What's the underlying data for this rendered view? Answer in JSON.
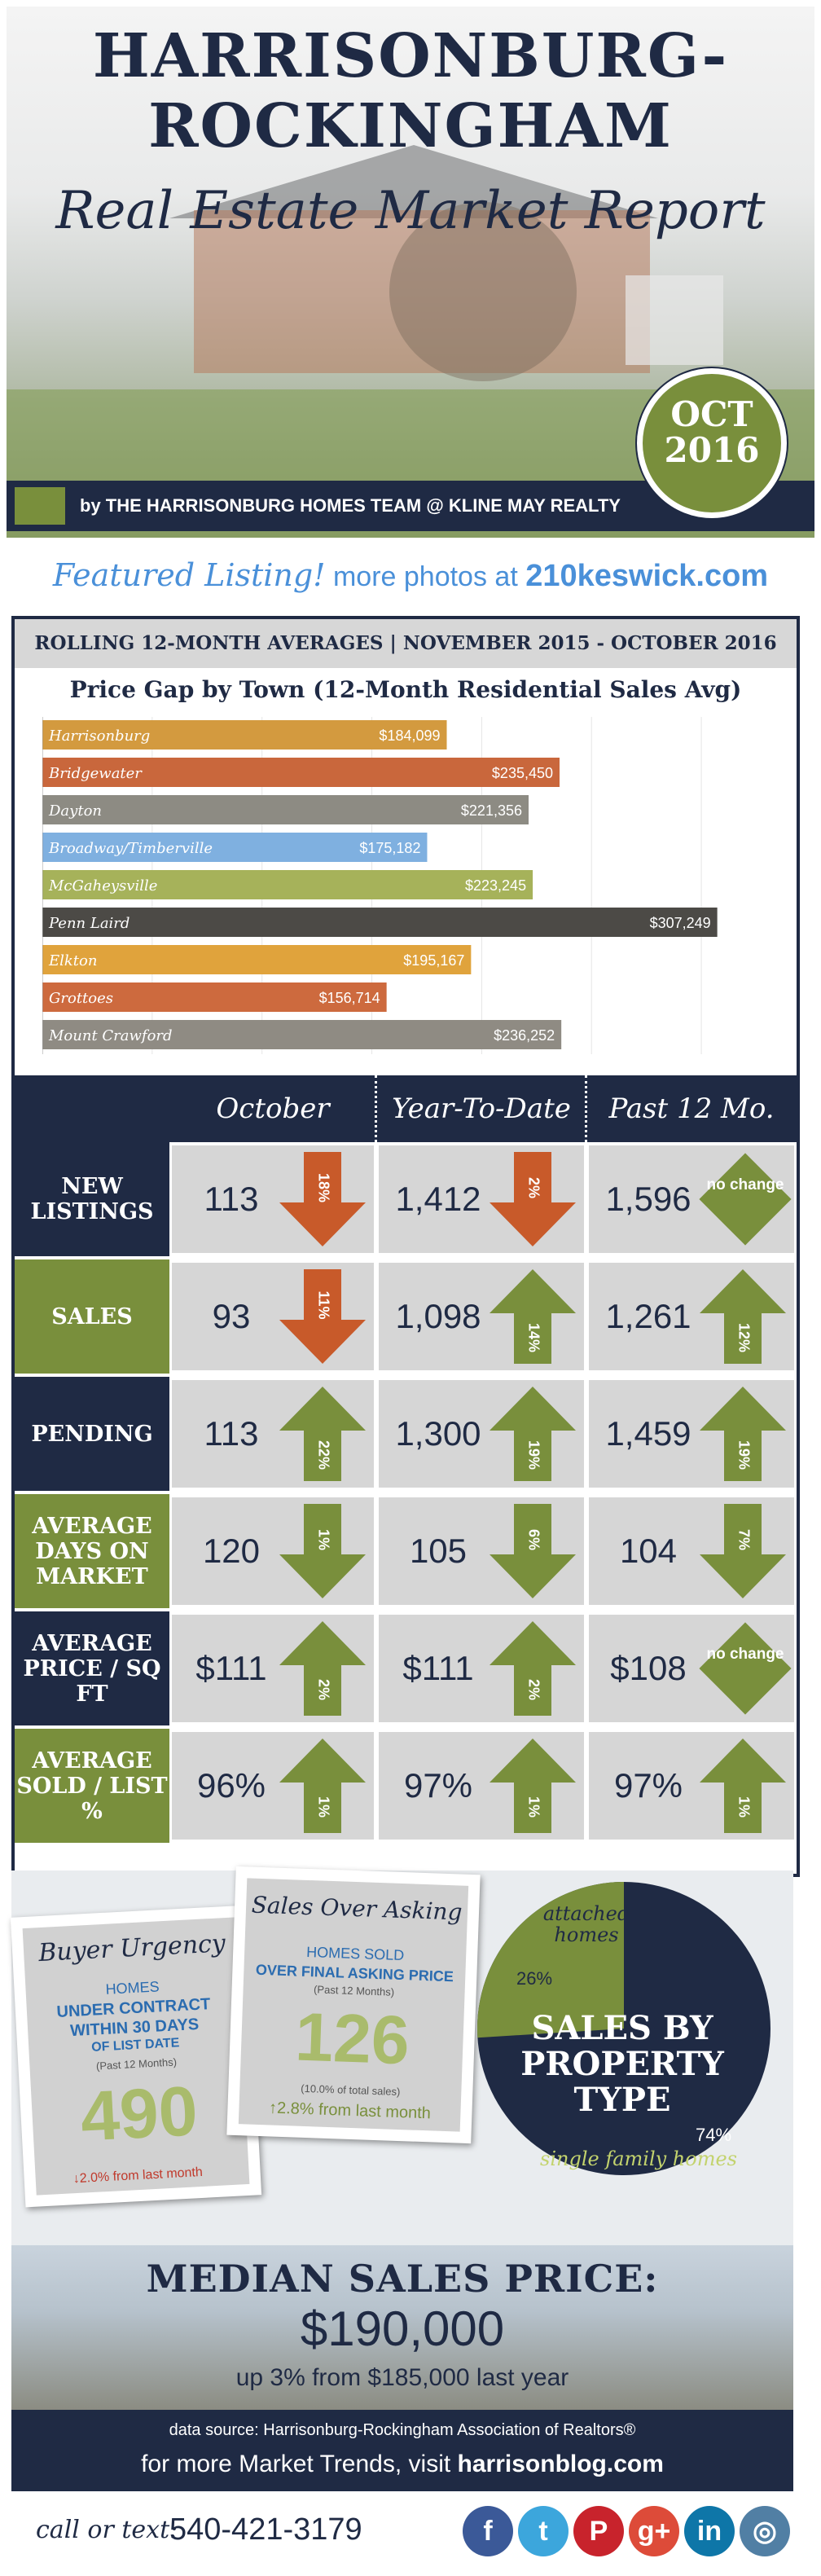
{
  "header": {
    "title_line1": "HARRISONBURG-",
    "title_line2": "ROCKINGHAM",
    "subtitle": "Real Estate Market Report",
    "badge_month": "OCT",
    "badge_year": "2016",
    "team_line": "by THE HARRISONBURG HOMES TEAM @ KLINE MAY REALTY"
  },
  "featured": {
    "script": "Featured Listing!",
    "text": "more photos at",
    "url": "210keswick.com"
  },
  "rolling": "ROLLING 12-MONTH AVERAGES | NOVEMBER 2015 - OCTOBER 2016",
  "chart_data": {
    "type": "bar",
    "orientation": "horizontal",
    "title": "Price Gap by Town (12-Month Residential Sales Avg)",
    "categories": [
      "Harrisonburg",
      "Bridgewater",
      "Dayton",
      "Broadway/Timberville",
      "McGaheysville",
      "Penn Laird",
      "Elkton",
      "Grottoes",
      "Mount Crawford"
    ],
    "values": [
      184099,
      235450,
      221356,
      175182,
      223245,
      307249,
      195167,
      156714,
      236252
    ],
    "value_labels": [
      "$184,099",
      "$235,450",
      "$221,356",
      "$175,182",
      "$223,245",
      "$307,249",
      "$195,167",
      "$156,714",
      "$236,252"
    ],
    "colors": [
      "#d39a3f",
      "#c9673c",
      "#8d8b83",
      "#7fb0e0",
      "#a6b25a",
      "#4c4a46",
      "#e0a33c",
      "#cd6a3e",
      "#8f8b83"
    ],
    "xlim": [
      0,
      330000
    ],
    "grid": true
  },
  "table": {
    "columns": [
      "October",
      "Year-To-Date",
      "Past 12 Mo."
    ],
    "rows": [
      {
        "label": "NEW LISTINGS",
        "label_color": "#1f2a44",
        "cells": [
          {
            "value": "113",
            "dir": "down",
            "pct": "18%",
            "color": "#c85a2a"
          },
          {
            "value": "1,412",
            "dir": "down",
            "pct": "2%",
            "color": "#c85a2a"
          },
          {
            "value": "1,596",
            "dir": "none",
            "pct": "no change",
            "color": "#798f3c"
          }
        ]
      },
      {
        "label": "SALES",
        "label_color": "#798f3c",
        "cells": [
          {
            "value": "93",
            "dir": "down",
            "pct": "11%",
            "color": "#c85a2a"
          },
          {
            "value": "1,098",
            "dir": "up",
            "pct": "14%",
            "color": "#798f3c"
          },
          {
            "value": "1,261",
            "dir": "up",
            "pct": "12%",
            "color": "#798f3c"
          }
        ]
      },
      {
        "label": "PENDING",
        "label_color": "#1f2a44",
        "cells": [
          {
            "value": "113",
            "dir": "up",
            "pct": "22%",
            "color": "#798f3c"
          },
          {
            "value": "1,300",
            "dir": "up",
            "pct": "19%",
            "color": "#798f3c"
          },
          {
            "value": "1,459",
            "dir": "up",
            "pct": "19%",
            "color": "#798f3c"
          }
        ]
      },
      {
        "label": "AVERAGE DAYS ON MARKET",
        "label_color": "#798f3c",
        "cells": [
          {
            "value": "120",
            "dir": "down",
            "pct": "1%",
            "color": "#798f3c"
          },
          {
            "value": "105",
            "dir": "down",
            "pct": "6%",
            "color": "#798f3c"
          },
          {
            "value": "104",
            "dir": "down",
            "pct": "7%",
            "color": "#798f3c"
          }
        ]
      },
      {
        "label": "AVERAGE PRICE / SQ FT",
        "label_color": "#1f2a44",
        "cells": [
          {
            "value": "$111",
            "dir": "up",
            "pct": "2%",
            "color": "#798f3c"
          },
          {
            "value": "$111",
            "dir": "up",
            "pct": "2%",
            "color": "#798f3c"
          },
          {
            "value": "$108",
            "dir": "none",
            "pct": "no change",
            "color": "#798f3c"
          }
        ]
      },
      {
        "label": "AVERAGE SOLD / LIST %",
        "label_color": "#798f3c",
        "cells": [
          {
            "value": "96%",
            "dir": "up",
            "pct": "1%",
            "color": "#798f3c"
          },
          {
            "value": "97%",
            "dir": "up",
            "pct": "1%",
            "color": "#798f3c"
          },
          {
            "value": "97%",
            "dir": "up",
            "pct": "1%",
            "color": "#798f3c"
          }
        ]
      }
    ]
  },
  "urgency": {
    "title": "Buyer Urgency",
    "l1": "HOMES",
    "l2": "UNDER CONTRACT",
    "l3": "WITHIN 30 DAYS",
    "l4": "OF LIST DATE",
    "l5": "(Past 12 Months)",
    "number": "490",
    "change": "↓2.0% from last month"
  },
  "asking": {
    "title": "Sales Over Asking",
    "l1": "HOMES SOLD",
    "l2": "OVER FINAL ASKING PRICE",
    "l3": "(Past 12 Months)",
    "number": "126",
    "note": "(10.0% of total sales)",
    "change": "↑2.8% from last month"
  },
  "property": {
    "title_1": "SALES BY",
    "title_2": "PROPERTY",
    "title_3": "TYPE",
    "attached_label": "attached homes",
    "attached_pct": "26%",
    "attached_value": 26,
    "single_label": "single family homes",
    "single_pct": "74%",
    "single_value": 74
  },
  "median": {
    "heading": "MEDIAN SALES PRICE:",
    "price": "$190,000",
    "sub": "up 3% from $185,000 last year"
  },
  "source": {
    "line1": "data source: Harrisonburg-Rockingham Association of Realtors®",
    "line2_a": "for more Market Trends, visit",
    "line2_b": "harrisonblog.com"
  },
  "footer": {
    "call": "call or text:",
    "phone": "540-421-3179",
    "social": [
      {
        "name": "facebook-icon",
        "glyph": "f",
        "color": "#3b5998"
      },
      {
        "name": "twitter-icon",
        "glyph": "t",
        "color": "#3ca6dc"
      },
      {
        "name": "pinterest-icon",
        "glyph": "P",
        "color": "#c8232c"
      },
      {
        "name": "googleplus-icon",
        "glyph": "g+",
        "color": "#dd4b39"
      },
      {
        "name": "linkedin-icon",
        "glyph": "in",
        "color": "#0e76a8"
      },
      {
        "name": "instagram-icon",
        "glyph": "◎",
        "color": "#517fa4"
      }
    ]
  }
}
